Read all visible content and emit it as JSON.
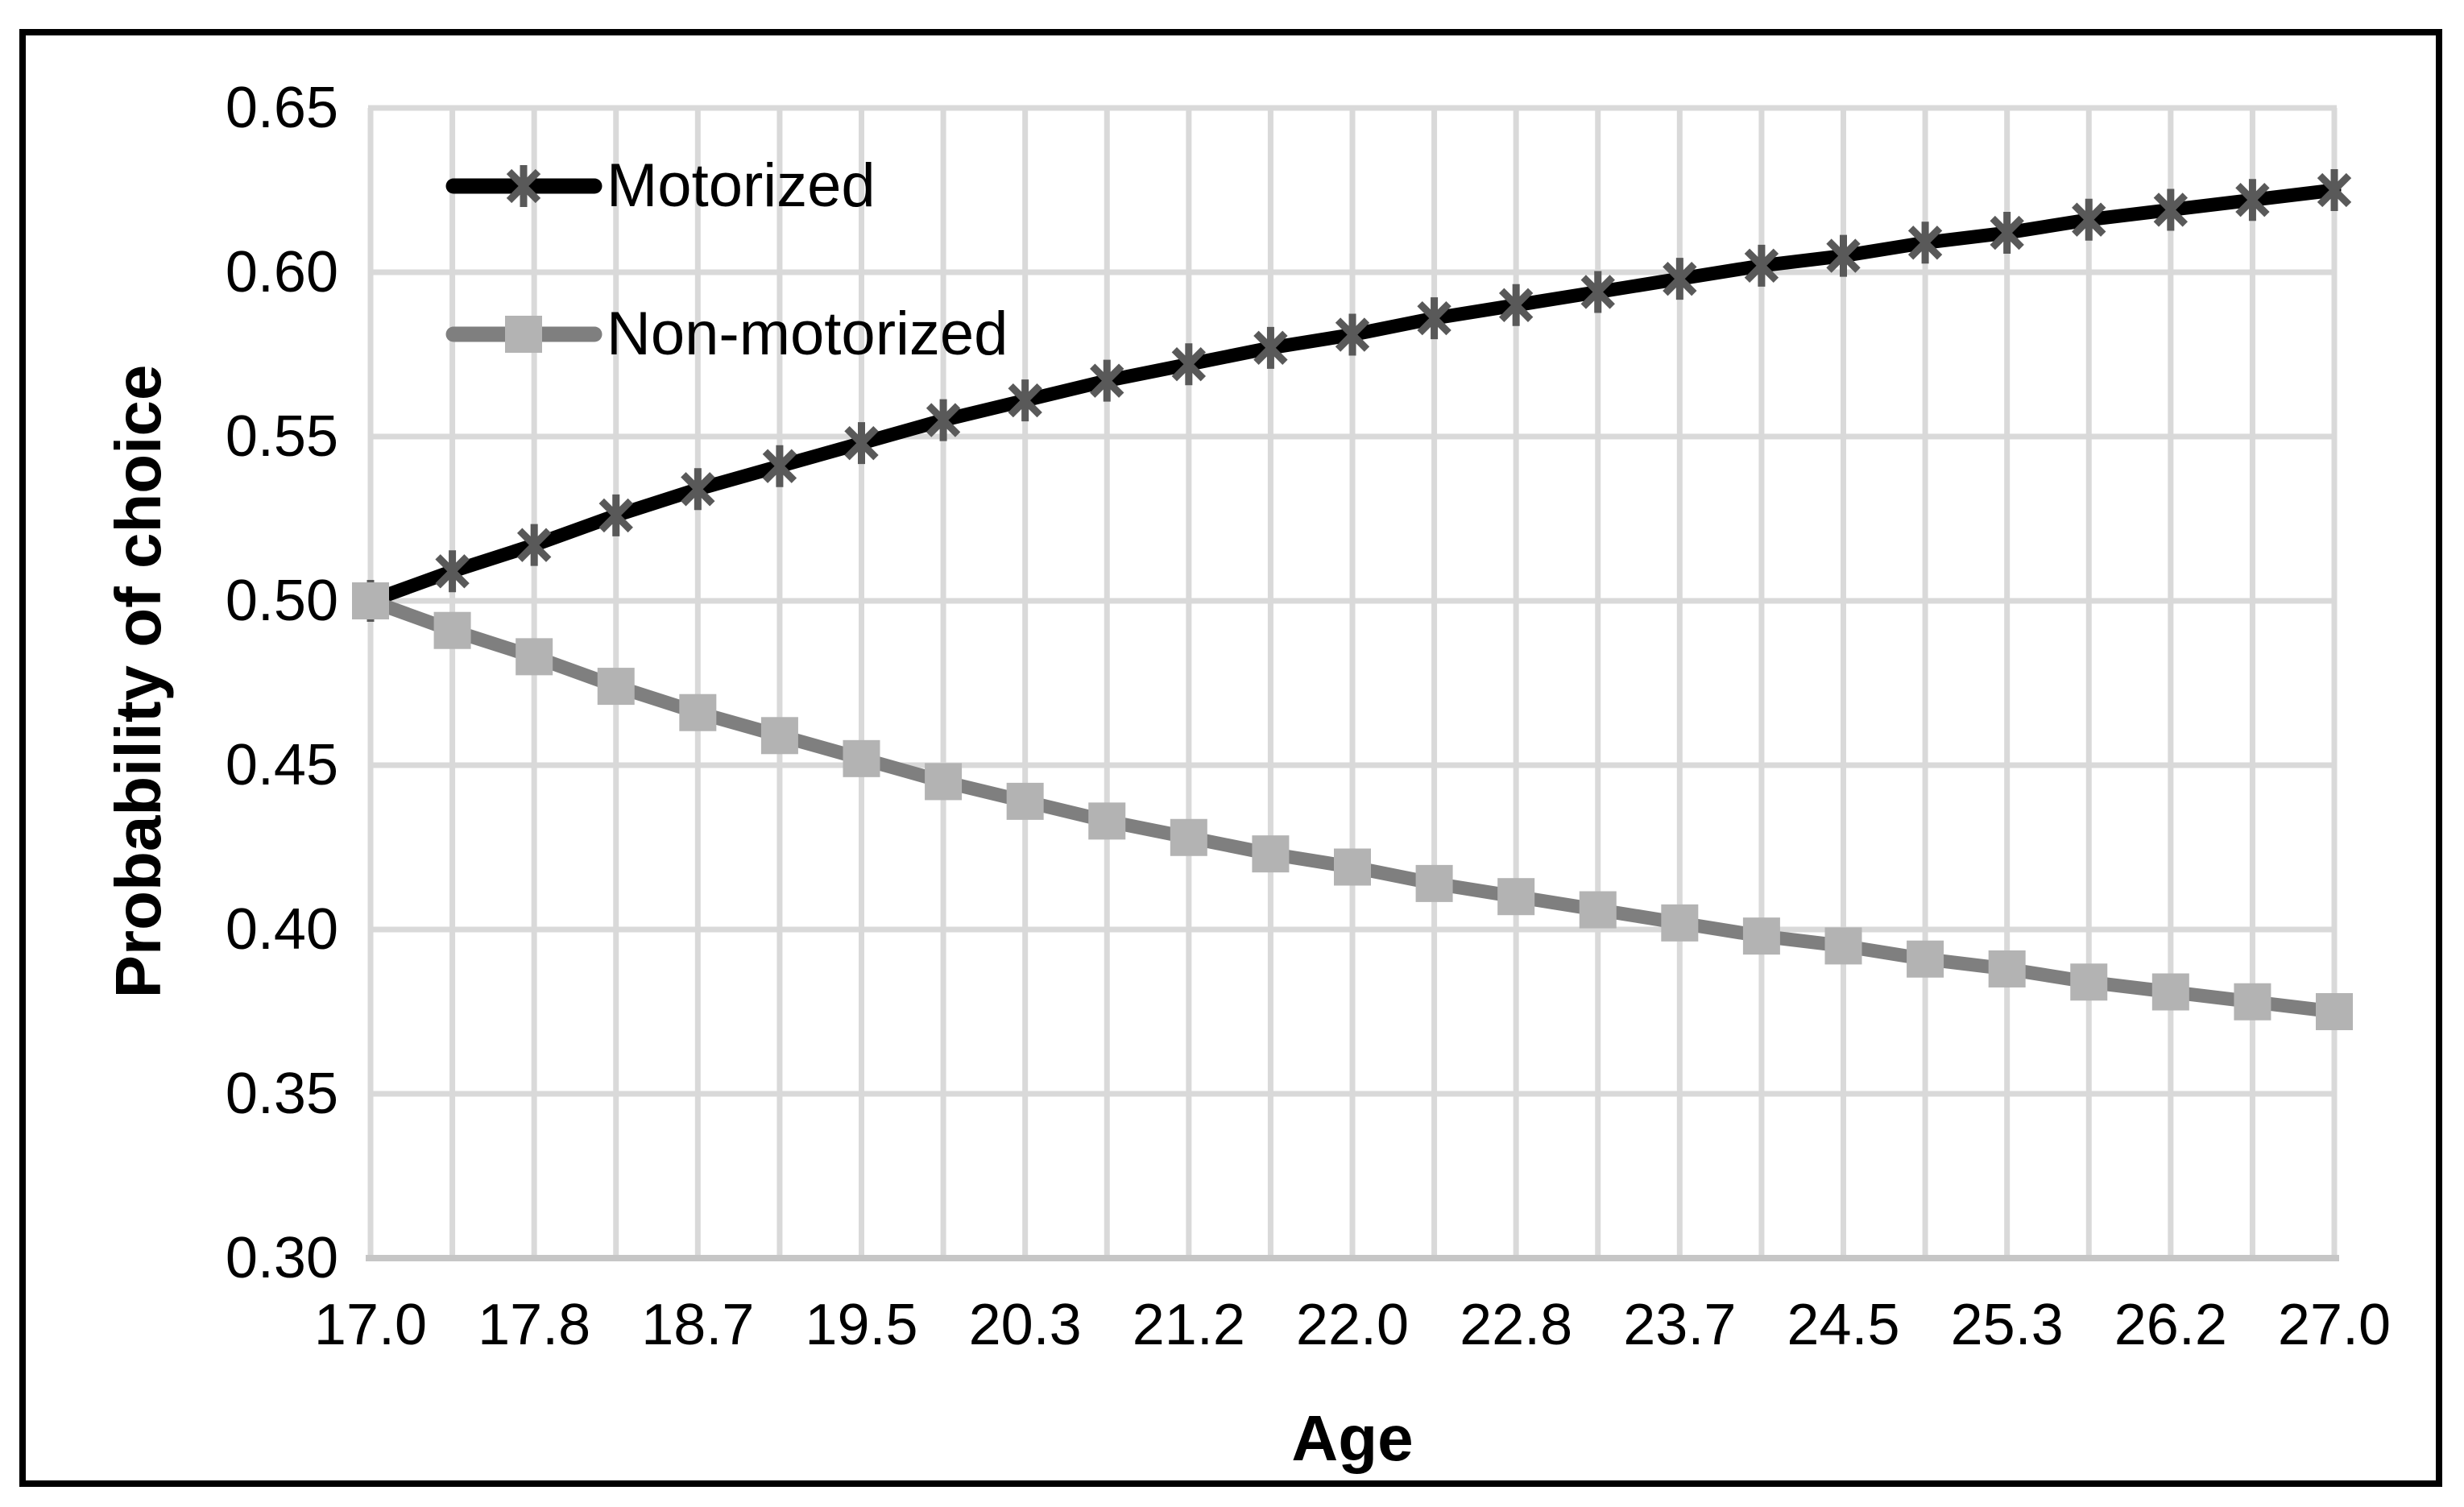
{
  "chart_data": {
    "type": "line",
    "title": "",
    "xlabel": "Age",
    "ylabel": "Probability of choice",
    "xlim": [
      17.0,
      27.0
    ],
    "ylim": [
      0.3,
      0.65
    ],
    "grid": true,
    "legend_position": "top-left-inside",
    "x": [
      17.0,
      17.42,
      17.83,
      18.25,
      18.67,
      19.08,
      19.5,
      19.92,
      20.33,
      20.75,
      21.17,
      21.58,
      22.0,
      22.42,
      22.83,
      23.25,
      23.67,
      24.08,
      24.5,
      24.92,
      25.33,
      25.75,
      26.17,
      26.58,
      27.0
    ],
    "x_tick_labels": [
      "17.0",
      "17.8",
      "18.7",
      "19.5",
      "20.3",
      "21.2",
      "22.0",
      "22.8",
      "23.7",
      "24.5",
      "25.3",
      "26.2",
      "27.0"
    ],
    "y_tick_labels": [
      "0.65",
      "0.60",
      "0.55",
      "0.50",
      "0.45",
      "0.40",
      "0.35",
      "0.30"
    ],
    "series": [
      {
        "name": "Motorized",
        "line_color": "#000000",
        "marker": "asterisk",
        "marker_color": "#595959",
        "values": [
          0.5,
          0.509,
          0.517,
          0.526,
          0.534,
          0.541,
          0.548,
          0.555,
          0.561,
          0.567,
          0.572,
          0.577,
          0.581,
          0.586,
          0.59,
          0.594,
          0.598,
          0.602,
          0.605,
          0.609,
          0.612,
          0.616,
          0.619,
          0.622,
          0.625
        ]
      },
      {
        "name": "Non-motorized",
        "line_color": "#7f7f7f",
        "marker": "square",
        "marker_color": "#b3b3b3",
        "values": [
          0.5,
          0.491,
          0.483,
          0.474,
          0.466,
          0.459,
          0.452,
          0.445,
          0.439,
          0.433,
          0.428,
          0.423,
          0.419,
          0.414,
          0.41,
          0.406,
          0.402,
          0.398,
          0.395,
          0.391,
          0.388,
          0.384,
          0.381,
          0.378,
          0.375
        ]
      }
    ]
  },
  "styles": {
    "background": "#ffffff",
    "border_color": "#000000",
    "gridline_color": "#d9d9d9",
    "axis_line_color": "#c6c6c6",
    "text_color": "#000000"
  }
}
